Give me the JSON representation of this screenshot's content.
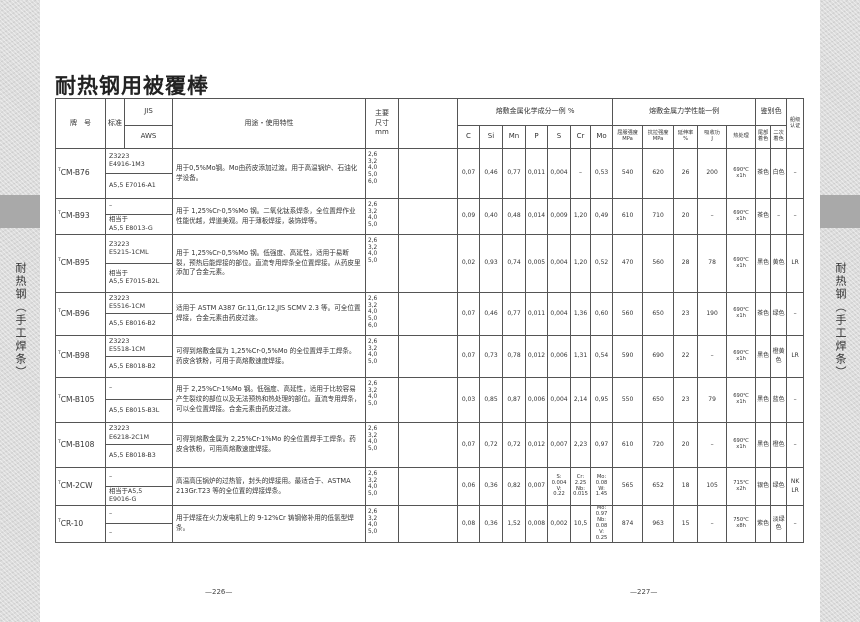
{
  "title": "耐热钢用被覆棒",
  "side_tab": "耐热钢（手工焊条）",
  "header": {
    "brand": "牌　号",
    "standard": "标准",
    "jis": "JIS",
    "aws": "AWS",
    "usage": "用途・使用特性",
    "size": "主要\n尺寸\nmm",
    "chem": "熔敷金属化学成分一例 %",
    "chem_cols": [
      "C",
      "Si",
      "Mn",
      "P",
      "S",
      "Cr",
      "Mo"
    ],
    "mech": "熔敷金属力学性能一例",
    "mech_cols": [
      "屈服强度\nMPa",
      "抗拉强度\nMPa",
      "延伸率\n%",
      "吸收功\nJ",
      "热处理"
    ],
    "color": "鉴别色",
    "color_cols": [
      "尾部\n着色",
      "二次\n着色"
    ],
    "cert": "船级\n认证"
  },
  "rows": [
    {
      "mark": "T",
      "brand": "CM-B76",
      "jis": "Z3223\nE4916-1M3",
      "aws": "A5,5 E7016-A1",
      "usage": "用于0,5%Mo钢。Mo由药皮添加过渡。用于高温锅炉、石油化学设备。",
      "sizes": "2,6\n3,2\n4,0\n5,0\n6,0",
      "chem": [
        "0,07",
        "0,46",
        "0,77",
        "0,011",
        "0,004",
        "–",
        "0,53"
      ],
      "mech": [
        "540",
        "620",
        "26",
        "200",
        "690℃\nx1h"
      ],
      "colors": [
        "茶色",
        "白色"
      ],
      "cert": "–"
    },
    {
      "mark": "T",
      "brand": "CM-B93",
      "jis": "–",
      "aws": "相当于\nA5,5 E8013-G",
      "usage": "用于 1,25%Cr-0,5%Mo 钢。二氧化钛系焊条，全位置焊作业性能优越，焊道美观。用于薄板焊接，装饰焊等。",
      "sizes": "2,6\n3,2\n4,0\n5,0",
      "chem": [
        "0,09",
        "0,40",
        "0,48",
        "0,014",
        "0,009",
        "1,20",
        "0,49"
      ],
      "mech": [
        "610",
        "710",
        "20",
        "–",
        "690℃\nx1h"
      ],
      "colors": [
        "茶色",
        "–"
      ],
      "cert": "–"
    },
    {
      "mark": "T",
      "brand": "CM-B95",
      "jis": "Z3223\nE5215-1CML",
      "aws": "相当于\nA5,5 E7015-B2L",
      "usage": "用于 1,25%Cr-0,5%Mo 钢。低强度、高延性，适用于易断裂，预热后能焊接的部位。直流专用焊条全位置焊接。从药皮里添加了合金元素。",
      "sizes": "2,6\n3,2\n4,0\n5,0",
      "chem": [
        "0,02",
        "0,93",
        "0,74",
        "0,005",
        "0,004",
        "1,20",
        "0,52"
      ],
      "mech": [
        "470",
        "560",
        "28",
        "78",
        "690℃\nx1h"
      ],
      "colors": [
        "黑色",
        "黄色"
      ],
      "cert": "LR"
    },
    {
      "mark": "T",
      "brand": "CM-B96",
      "jis": "Z3223\nE5516-1CM",
      "aws": "A5,5 E8016-B2",
      "usage": "适用于 ASTM A387 Gr.11,Gr.12,JIS SCMV 2.3 等。可全位置焊接，合金元素由药皮过渡。",
      "sizes": "2,6\n3,2\n4,0\n5,0\n6,0",
      "chem": [
        "0,07",
        "0,46",
        "0,77",
        "0,011",
        "0,004",
        "1,36",
        "0,60"
      ],
      "mech": [
        "560",
        "650",
        "23",
        "190",
        "690℃\nx1h"
      ],
      "colors": [
        "茶色",
        "绿色"
      ],
      "cert": "–"
    },
    {
      "mark": "T",
      "brand": "CM-B98",
      "jis": "Z3223\nE5518-1CM",
      "aws": "A5,5 E8018-B2",
      "usage": "可得到熔敷金属为 1,25%Cr-0,5%Mo 的全位置焊手工焊条。药皮含铁粉，可用于高熔敷速度焊接。",
      "sizes": "2,6\n3,2\n4,0\n5,0",
      "chem": [
        "0,07",
        "0,73",
        "0,78",
        "0,012",
        "0,006",
        "1,31",
        "0,54"
      ],
      "mech": [
        "590",
        "690",
        "22",
        "–",
        "690℃\nx1h"
      ],
      "colors": [
        "黑色",
        "橙黄色"
      ],
      "cert": "LR"
    },
    {
      "mark": "T",
      "brand": "CM-B105",
      "jis": "–",
      "aws": "A5,5 E8015-B3L",
      "usage": "用于 2,25%Cr-1%Mo 钢。低强度、高延性，适用于比较容易产生裂纹的部位以及无法预热和热处理的部位。直流专用焊条，可以全位置焊接。合金元素由药皮过渡。",
      "sizes": "2,6\n3,2\n4,0\n5,0",
      "chem": [
        "0,03",
        "0,85",
        "0,87",
        "0,006",
        "0,004",
        "2,14",
        "0,95"
      ],
      "mech": [
        "550",
        "650",
        "23",
        "79",
        "690℃\nx1h"
      ],
      "colors": [
        "黑色",
        "蓝色"
      ],
      "cert": "–"
    },
    {
      "mark": "T",
      "brand": "CM-B108",
      "jis": "Z3223\nE6218-2C1M",
      "aws": "A5,5 E8018-B3",
      "usage": "可得到熔敷金属为 2,25%Cr-1%Mo 的全位置焊手工焊条。药皮含铁粉，可用高熔敷速度焊接。",
      "sizes": "2,6\n3,2\n4,0\n5,0",
      "chem": [
        "0,07",
        "0,72",
        "0,72",
        "0,012",
        "0,007",
        "2,23",
        "0,97"
      ],
      "mech": [
        "610",
        "720",
        "20",
        "–",
        "690℃\nx1h"
      ],
      "colors": [
        "黑色",
        "橙色"
      ],
      "cert": "–"
    },
    {
      "mark": "T",
      "brand": "CM-2CW",
      "jis": "–",
      "aws": "相当于A5,5\nE9016-G",
      "usage": "高温高压锅炉的过热管，封头的焊接用。最适合于、ASTMA 213Gr.T23 等的全位置的焊接焊条。",
      "sizes": "2,6\n3,2\n4,0\n5,0",
      "chem": [
        "0,06",
        "0,36",
        "0,82",
        "0,007",
        "S:\n0.004\nV:\n0.22",
        "Cr:\n2.25\nNb:\n0.015",
        "Mo:\n0.08\nW:\n1.45"
      ],
      "mech": [
        "565",
        "652",
        "18",
        "105",
        "715℃\nx2h"
      ],
      "colors": [
        "银色",
        "绿色"
      ],
      "cert": "NK\nLR"
    },
    {
      "mark": "T",
      "brand": "CR-10",
      "jis": "–",
      "aws": "–",
      "usage": "用于焊接在火力发电机上的 9-12%Cr 铸钢修补用的低氢型焊条。",
      "sizes": "2,6\n3,2\n4,0\n5,0",
      "chem": [
        "0,08",
        "0,36",
        "1,52",
        "0,008",
        "0,002",
        "10,5",
        "Mo:\n0.97\nNb:\n0.08\nV:\n0.25"
      ],
      "mech": [
        "874",
        "963",
        "15",
        "–",
        "750℃\nx8h"
      ],
      "colors": [
        "紫色",
        "淡绿色"
      ],
      "cert": "–"
    }
  ],
  "page_left": "—226—",
  "page_right": "—227—"
}
